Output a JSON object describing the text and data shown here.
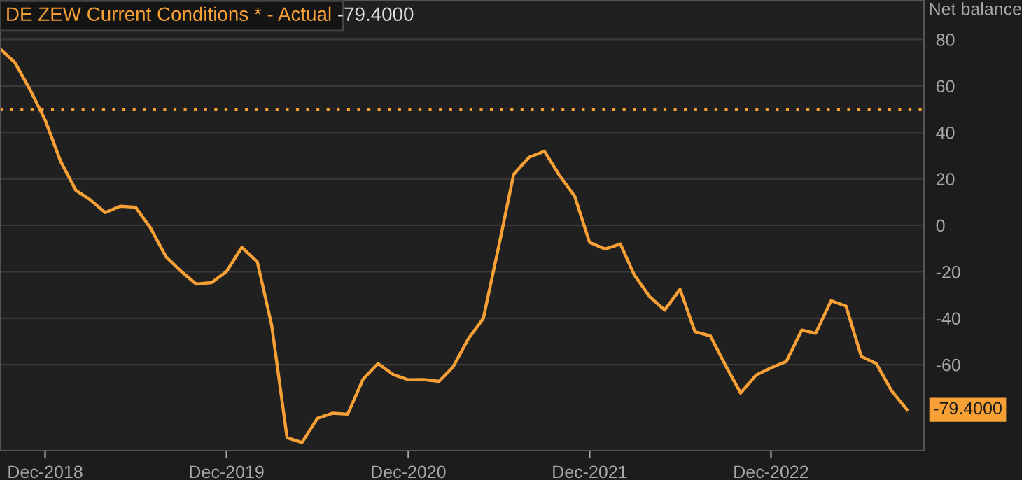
{
  "chart_data": {
    "type": "line",
    "title": "DE ZEW Current Conditions * - Actual",
    "ylabel": "Net balance",
    "x": [
      "2018-09",
      "2018-10",
      "2018-11",
      "2018-12",
      "2019-01",
      "2019-02",
      "2019-03",
      "2019-04",
      "2019-05",
      "2019-06",
      "2019-07",
      "2019-08",
      "2019-09",
      "2019-10",
      "2019-11",
      "2019-12",
      "2020-01",
      "2020-02",
      "2020-03",
      "2020-04",
      "2020-05",
      "2020-06",
      "2020-07",
      "2020-08",
      "2020-09",
      "2020-10",
      "2020-11",
      "2020-12",
      "2021-01",
      "2021-02",
      "2021-03",
      "2021-04",
      "2021-05",
      "2021-06",
      "2021-07",
      "2021-08",
      "2021-09",
      "2021-10",
      "2021-11",
      "2021-12",
      "2022-01",
      "2022-02",
      "2022-03",
      "2022-04",
      "2022-05",
      "2022-06",
      "2022-07",
      "2022-08",
      "2022-09",
      "2022-10",
      "2022-11",
      "2022-12",
      "2023-01",
      "2023-02",
      "2023-03",
      "2023-04",
      "2023-05",
      "2023-06",
      "2023-07",
      "2023-08",
      "2023-09"
    ],
    "series": [
      {
        "color": "#f7a035",
        "values": [
          76.0,
          70.1,
          58.2,
          45.3,
          27.6,
          15.0,
          11.1,
          5.5,
          8.2,
          7.8,
          -1.1,
          -13.5,
          -19.9,
          -25.3,
          -24.7,
          -19.9,
          -9.5,
          -15.7,
          -43.1,
          -91.5,
          -93.5,
          -83.1,
          -80.9,
          -81.3,
          -66.2,
          -59.5,
          -64.3,
          -66.5,
          -66.4,
          -67.2,
          -61.0,
          -48.8,
          -40.1,
          -9.1,
          21.9,
          29.3,
          31.9,
          21.6,
          12.5,
          -7.4,
          -10.2,
          -8.1,
          -21.4,
          -30.8,
          -36.5,
          -27.6,
          -45.8,
          -47.6,
          -60.5,
          -72.2,
          -64.5,
          -61.4,
          -58.6,
          -45.1,
          -46.5,
          -32.5,
          -34.8,
          -56.5,
          -59.5,
          -71.3,
          -79.4
        ]
      }
    ],
    "xlim": [
      "2018-09-01",
      "2023-10-05"
    ],
    "xticks": [
      {
        "value": "2018-12-01",
        "label": "Dec-2018"
      },
      {
        "value": "2019-12-01",
        "label": "Dec-2019"
      },
      {
        "value": "2020-12-01",
        "label": "Dec-2020"
      },
      {
        "value": "2021-12-01",
        "label": "Dec-2021"
      },
      {
        "value": "2022-12-01",
        "label": "Dec-2022"
      }
    ],
    "ylim": [
      -97,
      97
    ],
    "yticks": [
      -60,
      -40,
      -20,
      0,
      20,
      40,
      60,
      80
    ],
    "grid": "y",
    "legend": false,
    "marker": "none",
    "line_style": "solid",
    "ref_lines": [
      {
        "axis": "y",
        "value": 50,
        "color": "#f7a035",
        "line_style": "dotted"
      }
    ],
    "annotations": [
      "-79.4000",
      {
        "text": "-79.4000",
        "x": "2023-09",
        "y": -79.4
      }
    ]
  }
}
